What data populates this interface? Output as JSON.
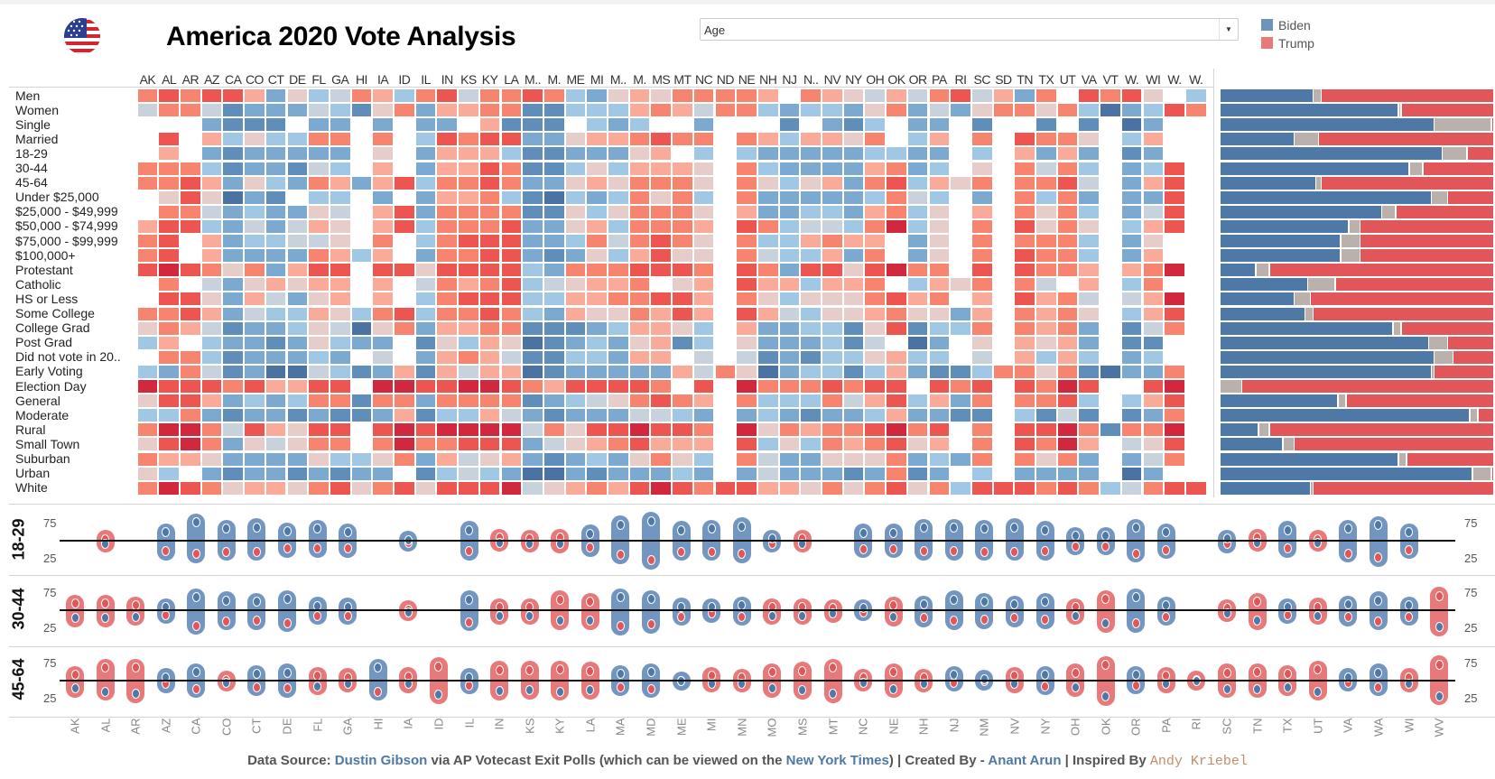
{
  "header": {
    "title": "America 2020 Vote Analysis",
    "flag_icon": "us-flag-globe-icon",
    "dropdown": {
      "selected": "Age"
    },
    "legend": [
      {
        "label": "Biden",
        "color": "#6f93bd"
      },
      {
        "label": "Trump",
        "color": "#e8797b"
      }
    ]
  },
  "colors": {
    "biden": "#4e79a7",
    "trump": "#e15759",
    "other": "#bab0ac",
    "biden_light": "#7396c0",
    "trump_light": "#e8797b",
    "heat_scale": [
      "#4a73a4",
      "#5f8ebb",
      "#7ba9d0",
      "#a0c7e3",
      "#c7d2dc",
      "#e6cdca",
      "#f9aa99",
      "#f7846e",
      "#ec5550",
      "#d2283e"
    ]
  },
  "heatmap": {
    "legend_note": "",
    "columns": [
      "AK",
      "AL",
      "AR",
      "AZ",
      "CA",
      "CO",
      "CT",
      "DE",
      "FL",
      "GA",
      "HI",
      "IA",
      "ID",
      "IL",
      "IN",
      "KS",
      "KY",
      "LA",
      "M..",
      "M.",
      "ME",
      "MI",
      "M..",
      "M.",
      "MS",
      "MT",
      "NC",
      "ND",
      "NE",
      "NH",
      "NJ",
      "N..",
      "NV",
      "NY",
      "OH",
      "OK",
      "OR",
      "PA",
      "RI",
      "SC",
      "SD",
      "TN",
      "TX",
      "UT",
      "VA",
      "VT",
      "W.",
      "WI",
      "W.",
      "W."
    ],
    "rows": [
      {
        "label": "Men",
        "levels": "78862534763784778732565"
      },
      {
        "label": "Women"
      },
      {
        "label": "Single"
      },
      {
        "label": "Married"
      },
      {
        "label": "18-29"
      },
      {
        "label": "30-44"
      },
      {
        "label": "45-64"
      },
      {
        "label": "Under $25,000"
      },
      {
        "label": "$25,000 - $49,999"
      },
      {
        "label": "$50,000 - $74,999"
      },
      {
        "label": "$75,000 - $99,999"
      },
      {
        "label": "$100,000+"
      },
      {
        "label": "Protestant"
      },
      {
        "label": "Catholic"
      },
      {
        "label": "HS or Less"
      },
      {
        "label": "Some College"
      },
      {
        "label": "College Grad"
      },
      {
        "label": "Post Grad"
      },
      {
        "label": "Did not vote in 20.."
      },
      {
        "label": "Early Voting"
      },
      {
        "label": "Election Day"
      },
      {
        "label": "General"
      },
      {
        "label": "Moderate"
      },
      {
        "label": "Rural"
      },
      {
        "label": "Small Town"
      },
      {
        "label": "Suburban"
      },
      {
        "label": "Urban"
      },
      {
        "label": "White"
      }
    ],
    "level_key": "0 = strongest Biden ... 9 = strongest Trump, . = no data",
    "grid": [
      "787886253476378477873256577776.765464784627.8785.368.",
      "47741222431572667711333676477323325724257757302387.",
      "...2111.22.2.22.6111.323..2...1.213.22.1..1.1.02..",
      ".8.6353377.7.38788225667877.7636657.36.7.8775.36..",
      ".6.2122222.5.266631122256.3.3222223322.3.6262.12..",
      "7773122143.6.26687113536665.7322226723.5.7473.238.",
      "778625327626837787225657775.753562783657.7784.268.",
      ".585021.33.2.26673103237573.7222223743.2.7372.228.",
      ".774232254.6827777115357775.6223326735.6.7573.248.",
      "6883242465.6837778225637776.8734437935.7.8575.368.",
      "78.6233445.7.37888223747875.7336766.25.7.7773.25..",
      "78.622227636.27788212536855.7433627.25.7.8773.26..",
      "8987572688.8858888327778887.8728858977.8.8776.679.",
      ".7.4256566.6.47678345667.56.8663667.3657.74.6.37..",
      ".885264256.6.37888336677886.7535557867.6.8674.469.",
      "778624336537837787326557686.864355675526.7675.368.",
      "576412235405726677111236653.622331581337.7672.147.",
      "36.322125322.15365012325613.5222314.02.5.6562.11..",
      ".773122232.4.267641133266.4.4121335633.4.6363.23..",
      "3274120043126164660122222647502331362113775710227.",
      "9888786688.99889987688887.8.97778788.878.8798..89.",
      "588623237717727777123457876.733374683627.7783.368.",
      "337212212112613364212224432.232122362211.3141.127.",
      "7997486588.8989999475889887.9576778978.7.889717 79.",
      "5897254577.7977888245678666.8353767856.7.8796.458.",
      "766522225335726456212325753.742255572327.7572.247.",
      "53.212212122.13432002122232.2422212712.3.2222.02..",
      "79875665785785888945676898788665757857388878734788"
    ]
  },
  "share_bars": [
    {
      "row": "Men",
      "biden": 0.34,
      "other": 0.03
    },
    {
      "row": "Women",
      "biden": 0.65,
      "other": 0.01
    },
    {
      "row": "Single",
      "biden": 0.78,
      "other": 0.21
    },
    {
      "row": "Married",
      "biden": 0.27,
      "other": 0.09
    },
    {
      "row": "18-29",
      "biden": 0.81,
      "other": 0.09
    },
    {
      "row": "30-44",
      "biden": 0.69,
      "other": 0.05
    },
    {
      "row": "45-64",
      "biden": 0.35,
      "other": 0.02
    },
    {
      "row": "Under $25,000",
      "biden": 0.77,
      "other": 0.06
    },
    {
      "row": "$25,000 - $49,999",
      "biden": 0.59,
      "other": 0.05
    },
    {
      "row": "$50,000 - $74,999",
      "biden": 0.47,
      "other": 0.04
    },
    {
      "row": "$75,000 - $99,999",
      "biden": 0.44,
      "other": 0.07
    },
    {
      "row": "$100,000+",
      "biden": 0.44,
      "other": 0.07
    },
    {
      "row": "Protestant",
      "biden": 0.13,
      "other": 0.05
    },
    {
      "row": "Catholic",
      "biden": 0.32,
      "other": 0.1
    },
    {
      "row": "HS or Less",
      "biden": 0.27,
      "other": 0.06
    },
    {
      "row": "Some College",
      "biden": 0.31,
      "other": 0.03
    },
    {
      "row": "College Grad",
      "biden": 0.63,
      "other": 0.03
    },
    {
      "row": "Post Grad",
      "biden": 0.76,
      "other": 0.07
    },
    {
      "row": "Did not vote in 20..",
      "biden": 0.78,
      "other": 0.07
    },
    {
      "row": "Early Voting",
      "biden": 0.77,
      "other": 0.01
    },
    {
      "row": "Election Day",
      "biden": 0.0,
      "other": 0.08
    },
    {
      "row": "General",
      "biden": 0.43,
      "other": 0.03
    },
    {
      "row": "Moderate",
      "biden": 0.91,
      "other": 0.03
    },
    {
      "row": "Rural",
      "biden": 0.14,
      "other": 0.04
    },
    {
      "row": "Small Town",
      "biden": 0.23,
      "other": 0.04
    },
    {
      "row": "Suburban",
      "biden": 0.65,
      "other": 0.03
    },
    {
      "row": "Urban",
      "biden": 0.92,
      "other": 0.07
    },
    {
      "row": "White",
      "biden": 0.33,
      "other": 0.01
    }
  ],
  "dumbbell": {
    "ticks": [
      "75",
      "25"
    ],
    "tick_values": [
      75,
      25
    ],
    "reference": 50,
    "states": [
      "AK",
      "AL",
      "AR",
      "AZ",
      "CA",
      "CO",
      "CT",
      "DE",
      "FL",
      "GA",
      "HI",
      "IA",
      "ID",
      "IL",
      "IN",
      "KS",
      "KY",
      "LA",
      "MA",
      "MD",
      "ME",
      "MI",
      "MN",
      "MO",
      "MS",
      "MT",
      "NC",
      "NE",
      "NH",
      "NJ",
      "NM",
      "NV",
      "NY",
      "OH",
      "OK",
      "OR",
      "PA",
      "RI",
      "SC",
      "TN",
      "TX",
      "UT",
      "VA",
      "WA",
      "WI",
      "WV"
    ],
    "bands": [
      {
        "label": "18-29",
        "biden": [
          null,
          46,
          null,
          62,
          76,
          67,
          69,
          63,
          67,
          62,
          null,
          51,
          null,
          65,
          47,
          46,
          45,
          60,
          73,
          78,
          65,
          67,
          70,
          53,
          46,
          null,
          61,
          61,
          68,
          68,
          67,
          69,
          65,
          57,
          57,
          68,
          62,
          null,
          53,
          47,
          65,
          47,
          67,
          72,
          62,
          null
        ],
        "trump": [
          null,
          52,
          null,
          35,
          31,
          34,
          34,
          39,
          39,
          39,
          null,
          47,
          null,
          35,
          54,
          53,
          54,
          40,
          30,
          22,
          34,
          34,
          31,
          46,
          53,
          null,
          38,
          38,
          35,
          35,
          34,
          34,
          35,
          42,
          42,
          32,
          37,
          null,
          45,
          54,
          39,
          52,
          32,
          26,
          37,
          null
        ]
      },
      {
        "label": "30-44",
        "biden": [
          39,
          39,
          41,
          54,
          68,
          64,
          62,
          66,
          56,
          55,
          null,
          47,
          null,
          65,
          42,
          42,
          35,
          35,
          68,
          66,
          55,
          54,
          57,
          42,
          42,
          45,
          53,
          40,
          58,
          65,
          62,
          58,
          62,
          42,
          31,
          68,
          57,
          null,
          46,
          35,
          54,
          42,
          58,
          64,
          57,
          26
        ],
        "trump": [
          59,
          59,
          57,
          43,
          28,
          34,
          35,
          32,
          42,
          42,
          null,
          51,
          null,
          33,
          54,
          54,
          65,
          62,
          27,
          30,
          41,
          45,
          41,
          54,
          54,
          53,
          47,
          57,
          39,
          35,
          36,
          39,
          36,
          54,
          66,
          31,
          41,
          null,
          53,
          62,
          43,
          55,
          40,
          34,
          41,
          70
        ]
      },
      {
        "label": "45-64",
        "biden": [
          39,
          34,
          31,
          55,
          62,
          47,
          59,
          61,
          42,
          46,
          68,
          45,
          30,
          55,
          35,
          36,
          34,
          36,
          59,
          62,
          50,
          46,
          46,
          39,
          36,
          31,
          47,
          38,
          46,
          58,
          52,
          45,
          58,
          40,
          27,
          58,
          45,
          49,
          38,
          38,
          41,
          34,
          55,
          61,
          46,
          28
        ],
        "trump": [
          58,
          68,
          68,
          45,
          38,
          51,
          41,
          39,
          57,
          55,
          34,
          56,
          70,
          43,
          65,
          65,
          66,
          64,
          41,
          38,
          49,
          57,
          54,
          62,
          64,
          68,
          54,
          62,
          54,
          47,
          49,
          57,
          42,
          61,
          72,
          43,
          57,
          51,
          61,
          62,
          59,
          66,
          47,
          41,
          55,
          73
        ]
      }
    ]
  },
  "footer": {
    "p1": "Data Source: ",
    "link1": "Dustin Gibson",
    "p2": " via AP Votecast Exit Polls (which can be viewed on the ",
    "link2": "New York Times",
    "p3": ") | Created By - ",
    "link3": "Anant Arun",
    "p4": " | Inspired By ",
    "link4": "Andy  Kriebel"
  }
}
